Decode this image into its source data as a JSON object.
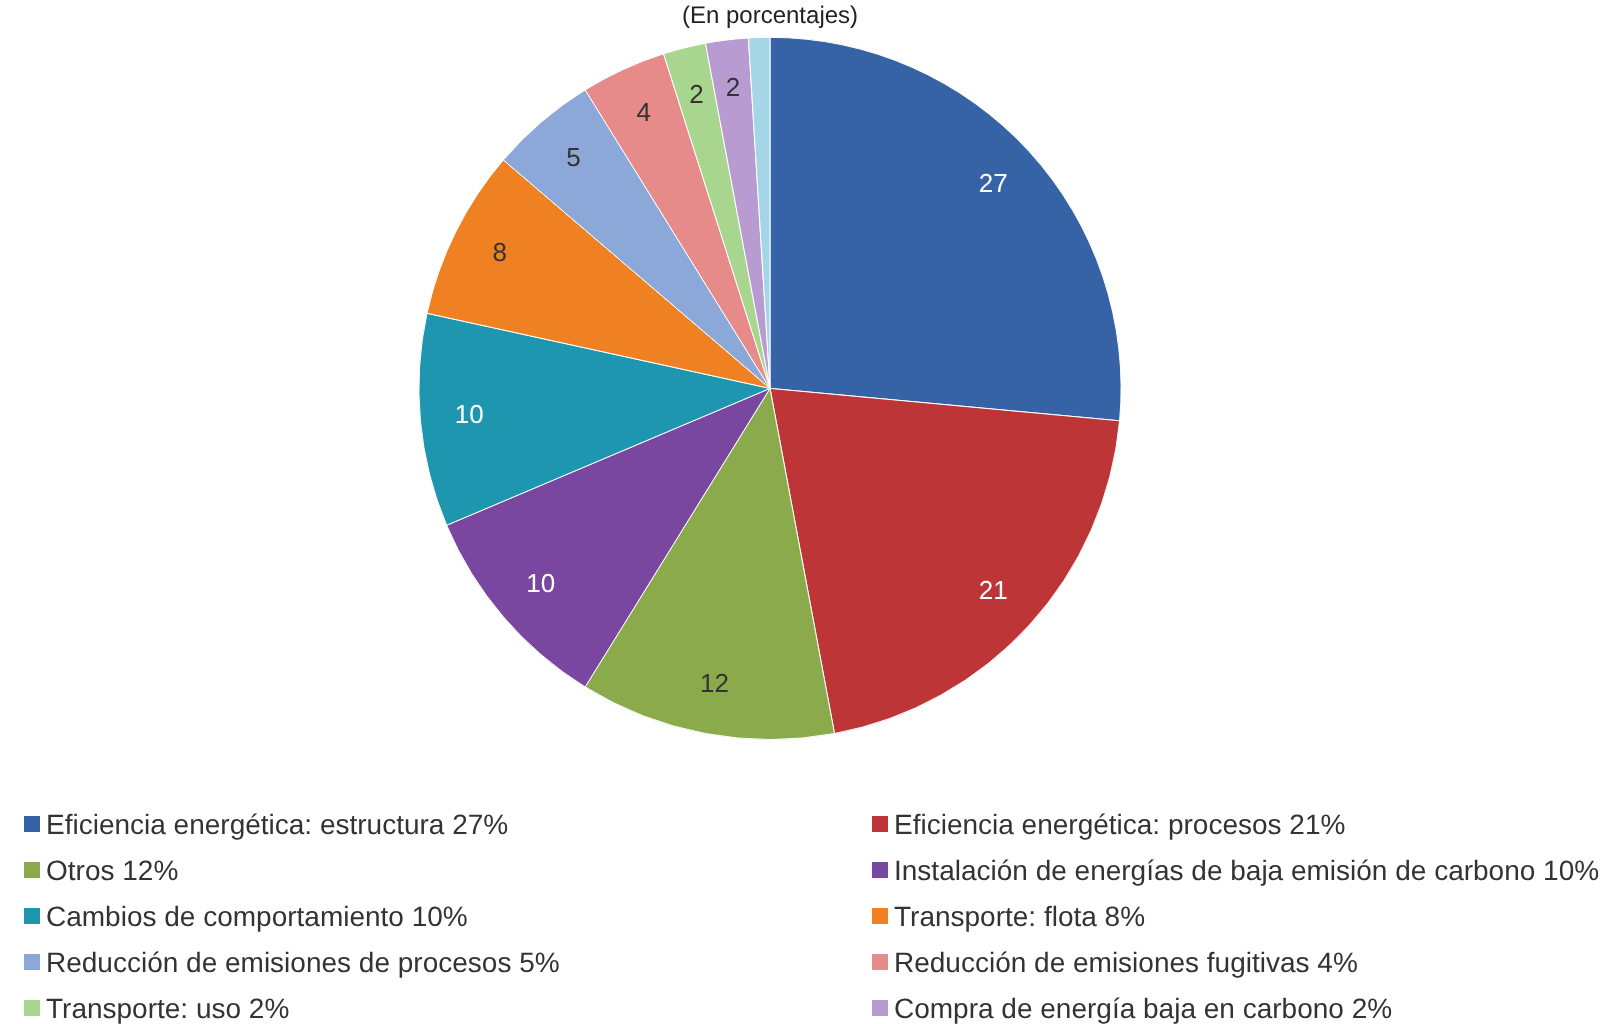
{
  "chart_data": {
    "type": "pie",
    "title": "(En porcentajes)",
    "categories": [
      "Eficiencia energética: estructura 27%",
      "Eficiencia energética: procesos 21%",
      "Otros 12%",
      "Instalación de energías de baja emisión de carbono 10%",
      "Cambios de comportamiento 10%",
      "Transporte: flota 8%",
      "Reducción de emisiones de procesos 5%",
      "Reducción de emisiones fugitivas 4%",
      "Transporte: uso 2%",
      "Compra de energía baja en carbono 2%",
      null
    ],
    "values": [
      27,
      21,
      12,
      10,
      10,
      8,
      5,
      4,
      2,
      2,
      1
    ],
    "colors": [
      "#3563a5",
      "#be3538",
      "#8aaa4c",
      "#7a47a0",
      "#1f96b0",
      "#ef8122",
      "#8ca8d8",
      "#e68a8a",
      "#a9d68f",
      "#b89bd0",
      "#a4d6e8"
    ],
    "value_labels": [
      "27",
      "21",
      "12",
      "10",
      "10",
      "8",
      "5",
      "4",
      "2",
      "2",
      null
    ],
    "legend": "bottom"
  }
}
